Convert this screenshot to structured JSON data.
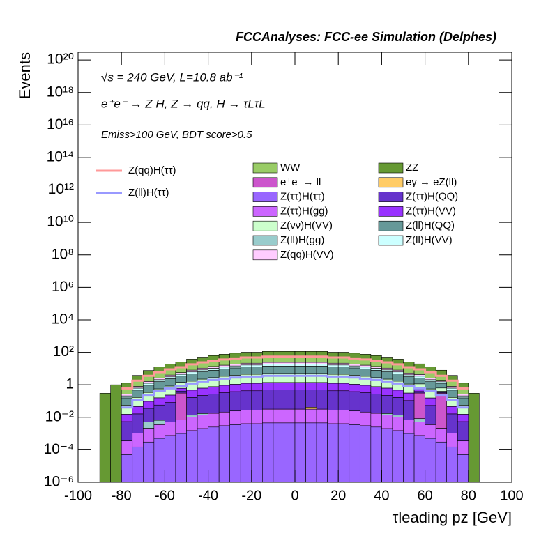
{
  "chart_data": {
    "type": "stacked_histogram",
    "title": "FCCAnalyses: FCC-ee Simulation (Delphes)",
    "annotations": [
      "√s = 240 GeV, L=10.8 ab⁻¹",
      "e⁺e⁻ → Z H, Z → qq, H → τLτL",
      "Emiss>100 GeV, BDT score>0.5"
    ],
    "xlabel": "τleading pz [GeV]",
    "ylabel": "Events",
    "log_y": true,
    "xlim": [
      -100,
      100
    ],
    "xticks": [
      -100,
      -80,
      -60,
      -40,
      -20,
      0,
      20,
      40,
      60,
      80,
      100
    ],
    "ylim": [
      1e-06,
      3e+20
    ],
    "yticks": [
      {
        "value": 1e-06,
        "label": "10⁻⁶"
      },
      {
        "value": 0.0001,
        "label": "10⁻⁴"
      },
      {
        "value": 0.01,
        "label": "10⁻²"
      },
      1,
      {
        "value": 100,
        "label": "10²"
      },
      {
        "value": 10000,
        "label": "10⁴"
      },
      {
        "value": 1000000.0,
        "label": "10⁶"
      },
      {
        "value": 100000000.0,
        "label": "10⁸"
      },
      {
        "value": 10000000000.0,
        "label": "10¹⁰"
      },
      {
        "value": 1000000000000.0,
        "label": "10¹²"
      },
      {
        "value": 100000000000000.0,
        "label": "10¹⁴"
      },
      {
        "value": 1e+16,
        "label": "10¹⁶"
      },
      {
        "value": 1e+18,
        "label": "10¹⁸"
      },
      {
        "value": 1e+20,
        "label": "10²⁰"
      }
    ],
    "bins": [
      -100,
      -95,
      -90,
      -85,
      -80,
      -75,
      -70,
      -65,
      -60,
      -55,
      -50,
      -45,
      -40,
      -35,
      -30,
      -25,
      -20,
      -15,
      -10,
      -5,
      0,
      5,
      10,
      15,
      20,
      25,
      30,
      35,
      40,
      45,
      50,
      55,
      60,
      65,
      70,
      75,
      80,
      85,
      90,
      95,
      100
    ],
    "series": [
      {
        "name": "Z(ττ)H(ττ)",
        "color": "#9966ff",
        "values": [
          0,
          0,
          0,
          0,
          5e-05,
          0.00015,
          0.0003,
          0.0005,
          0.00075,
          0.001,
          0.0015,
          0.002,
          0.0025,
          0.003,
          0.0035,
          0.004,
          0.004,
          0.0045,
          0.0045,
          0.0045,
          0.0045,
          0.0045,
          0.0045,
          0.004,
          0.004,
          0.0035,
          0.003,
          0.0025,
          0.002,
          0.0015,
          0.001,
          0.00075,
          0.0005,
          0.0003,
          0.00015,
          5e-05,
          0,
          0,
          0,
          0
        ]
      },
      {
        "name": "Z(ττ)H(gg)",
        "color": "#cc66ff",
        "values": [
          0,
          0,
          0,
          0,
          0.0003,
          0.0009,
          0.0018,
          0.003,
          0.0045,
          0.006,
          0.009,
          0.012,
          0.015,
          0.018,
          0.021,
          0.024,
          0.024,
          0.027,
          0.027,
          0.027,
          0.027,
          0.027,
          0.027,
          0.024,
          0.024,
          0.021,
          0.018,
          0.015,
          0.012,
          0.009,
          0.006,
          0.0045,
          0.003,
          0.0018,
          0.0009,
          0.0003,
          0,
          0,
          0,
          0
        ]
      },
      {
        "name": "Z(ll)H(gg)",
        "color": "#99cccc",
        "values": [
          0,
          0,
          0,
          0,
          0,
          0,
          0.003,
          0.003,
          0,
          0,
          0.003,
          0.003,
          0,
          0,
          0,
          0,
          0,
          0,
          0,
          0,
          0,
          0,
          0,
          0,
          0,
          0,
          0,
          0,
          0.003,
          0.003,
          0,
          0.003,
          0,
          0,
          0,
          0,
          0,
          0,
          0,
          0
        ]
      },
      {
        "name": "eγ → eZ(ll)",
        "color": "#ffcc66",
        "values": [
          0,
          0,
          0,
          0,
          0,
          0,
          0,
          0,
          0,
          0,
          0,
          0,
          0,
          0,
          0,
          0,
          0,
          0,
          0,
          0,
          0,
          0.01,
          0,
          0,
          0,
          0,
          0,
          0,
          0,
          0,
          0,
          0,
          0,
          0,
          0,
          0,
          0,
          0,
          0,
          0
        ]
      },
      {
        "name": "e⁺e⁻→ ll",
        "color": "#cc55cc",
        "values": [
          0,
          0,
          0,
          0,
          0,
          0,
          0,
          0,
          0,
          0.3,
          0,
          0,
          0,
          0,
          0,
          0,
          0,
          0,
          0,
          0,
          0,
          0,
          0,
          0,
          0,
          0,
          0,
          0,
          0,
          0,
          0,
          0.3,
          0,
          0.3,
          0,
          0,
          0,
          0,
          0,
          0
        ]
      },
      {
        "name": "Z(ττ)H(QQ)",
        "color": "#6633cc",
        "values": [
          0,
          0,
          0,
          0,
          0.005,
          0.015,
          0.03,
          0.05,
          0.075,
          0.1,
          0.15,
          0.2,
          0.25,
          0.3,
          0.35,
          0.4,
          0.4,
          0.45,
          0.45,
          0.45,
          0.45,
          0.45,
          0.45,
          0.4,
          0.4,
          0.35,
          0.3,
          0.25,
          0.2,
          0.15,
          0.1,
          0.075,
          0.05,
          0.03,
          0.015,
          0.005,
          0,
          0,
          0,
          0
        ]
      },
      {
        "name": "Z(ττ)H(VV)",
        "color": "#9933ff",
        "values": [
          0,
          0,
          0,
          0,
          0.01,
          0.03,
          0.06,
          0.1,
          0.15,
          0.2,
          0.3,
          0.4,
          0.5,
          0.6,
          0.7,
          0.8,
          0.8,
          0.9,
          0.9,
          0.9,
          0.9,
          0.9,
          0.9,
          0.8,
          0.8,
          0.7,
          0.6,
          0.5,
          0.4,
          0.3,
          0.2,
          0.15,
          0.1,
          0.06,
          0.03,
          0.01,
          0,
          0,
          0,
          0
        ]
      },
      {
        "name": "Z(νν)H(VV)",
        "color": "#ccffcc",
        "values": [
          0,
          0,
          0,
          0,
          0.04,
          0.12,
          0.24,
          0.4,
          0.6,
          0.8,
          1.2,
          1.6,
          2,
          2.4,
          2.8,
          3.2,
          3.2,
          3.6,
          3.6,
          3.6,
          3.6,
          3.6,
          3.6,
          3.2,
          3.2,
          2.8,
          2.4,
          2,
          1.6,
          1.2,
          0.8,
          0.6,
          0.4,
          0.24,
          0.12,
          0.04,
          0,
          0,
          0,
          0
        ]
      },
      {
        "name": "Z(ll)H(QQ)",
        "color": "#669999",
        "values": [
          0,
          0,
          0,
          0,
          0.1,
          0.3,
          0.6,
          1,
          1.5,
          2,
          3,
          4,
          5,
          6,
          7,
          8,
          8,
          9,
          9,
          9,
          9,
          9,
          9,
          8,
          8,
          7,
          6,
          5,
          4,
          3,
          2,
          1.5,
          1,
          0.6,
          0.3,
          0.1,
          0,
          0,
          0,
          0
        ]
      },
      {
        "name": "Z(ll)H(VV)",
        "color": "#ccffff",
        "values": [
          0,
          0,
          0,
          0,
          0.05,
          0.15,
          0.3,
          0.5,
          0.75,
          1,
          1.5,
          2,
          2.5,
          3,
          3.5,
          4,
          4,
          4.5,
          4.5,
          4.5,
          4.5,
          4.5,
          4.5,
          4,
          4,
          3.5,
          3,
          2.5,
          2,
          1.5,
          1,
          0.75,
          0.5,
          0.3,
          0.15,
          0.05,
          0,
          0,
          0,
          0
        ]
      },
      {
        "name": "Z(qq)H(VV)",
        "color": "#ffccff",
        "values": [
          0,
          0,
          0,
          0,
          0.06,
          0.18,
          0.36,
          0.6,
          0.9,
          1.2,
          1.8,
          2.4,
          3,
          3.6,
          4.2,
          4.8,
          4.8,
          5.4,
          5.4,
          5.4,
          5.4,
          5.4,
          5.4,
          4.8,
          4.8,
          4.2,
          3.6,
          3,
          2.4,
          1.8,
          1.2,
          0.9,
          0.6,
          0.36,
          0.18,
          0.06,
          0,
          0,
          0,
          0
        ]
      },
      {
        "name": "WW",
        "color": "#99cc66",
        "values": [
          0,
          0,
          0,
          0,
          0.3,
          0.9,
          1.8,
          3,
          4.5,
          6,
          9,
          12,
          15,
          18,
          21,
          24,
          24,
          27,
          27,
          27,
          27,
          27,
          27,
          24,
          24,
          21,
          18,
          15,
          12,
          9,
          6,
          4.5,
          3,
          1.8,
          0.9,
          0.3,
          0,
          0,
          0,
          0
        ]
      },
      {
        "name": "ZZ",
        "color": "#669933",
        "values": [
          0,
          0,
          0.3,
          1,
          0.7,
          2.1,
          4.2,
          7,
          10.5,
          14,
          21,
          28,
          35,
          42,
          49,
          56,
          56,
          63,
          63,
          63,
          63,
          63,
          63,
          56,
          56,
          49,
          42,
          35,
          28,
          21,
          14,
          10.5,
          7,
          4.2,
          2.1,
          0.7,
          0.3,
          0,
          0,
          0
        ]
      }
    ],
    "lines": [
      {
        "name": "Z(qq)H(ττ)",
        "color": "#ff9999",
        "values": [
          null,
          null,
          null,
          null,
          0.6,
          1.8,
          3.6,
          6,
          9,
          12,
          18,
          24,
          30,
          36,
          42,
          48,
          48,
          54,
          54,
          54,
          54,
          54,
          54,
          48,
          48,
          42,
          36,
          30,
          24,
          18,
          12,
          9,
          6,
          3.6,
          1.8,
          0.6,
          null,
          null,
          null,
          null
        ]
      },
      {
        "name": "Z(ll)H(ττ)",
        "color": "#9999ff",
        "values": [
          null,
          null,
          null,
          null,
          0.04,
          0.12,
          0.24,
          0.4,
          0.6,
          0.8,
          1.2,
          1.6,
          2,
          2.4,
          2.8,
          3.2,
          3.2,
          3.6,
          3.6,
          3.6,
          3.6,
          3.6,
          3.6,
          3.2,
          3.2,
          2.8,
          2.4,
          2,
          1.6,
          1.2,
          0.8,
          0.6,
          0.4,
          0.24,
          0.12,
          0.04,
          null,
          null,
          null,
          null
        ]
      }
    ]
  }
}
